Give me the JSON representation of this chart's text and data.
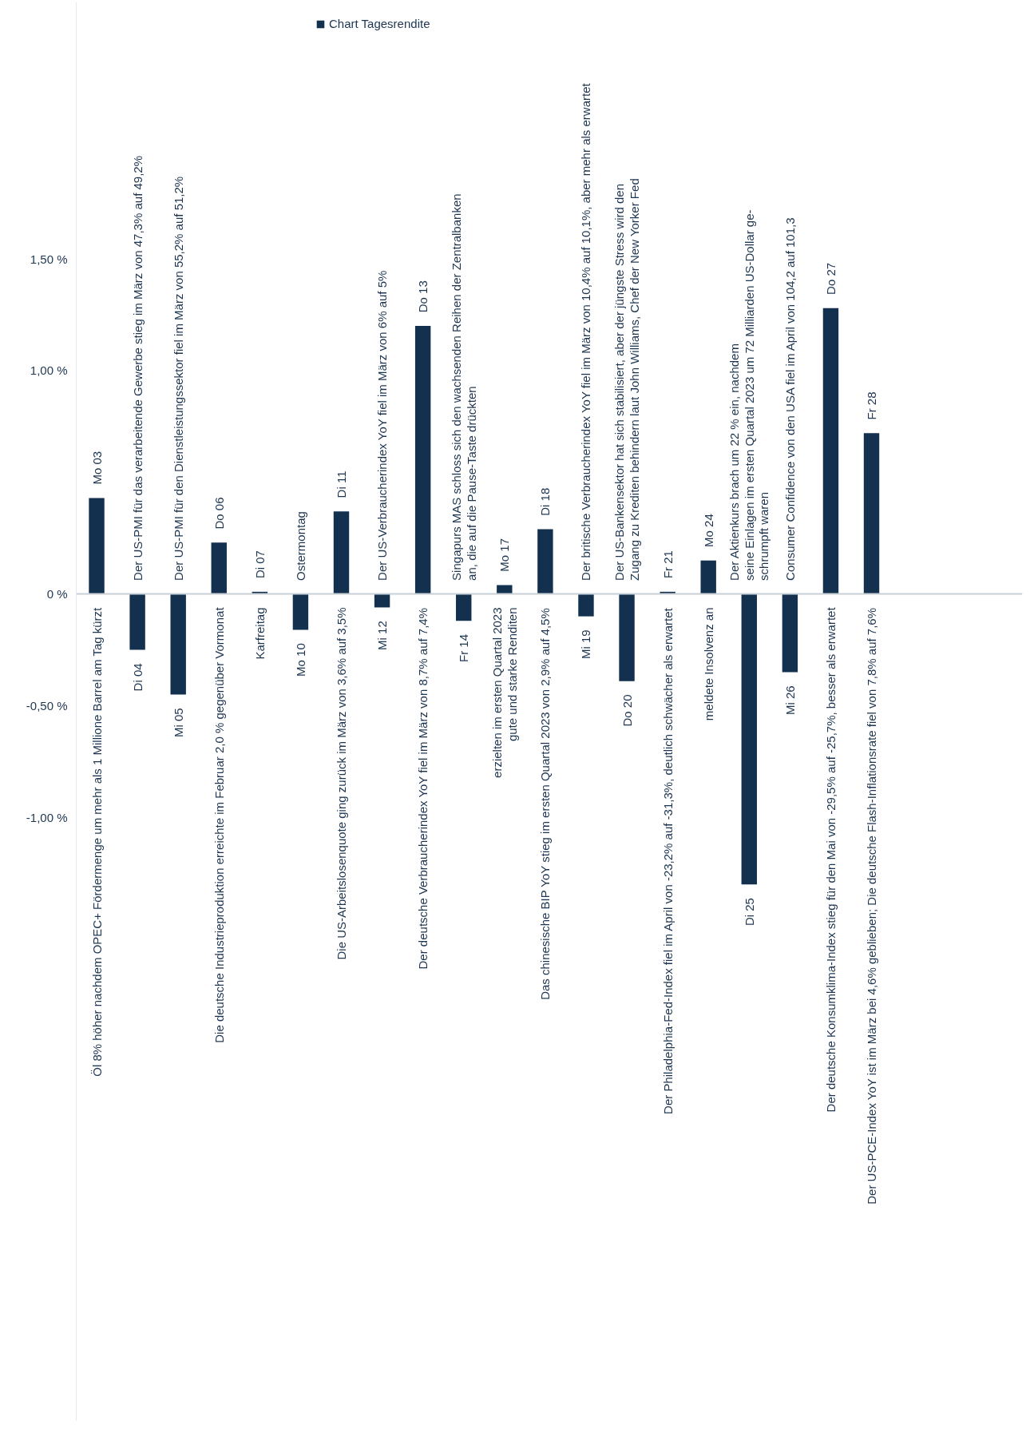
{
  "chart_data": {
    "type": "bar",
    "categories": [
      "Mo 03",
      "Di 04",
      "Mi 05",
      "Do 06",
      "Di 07",
      "Mo 10",
      "Di 11",
      "Mi 12",
      "Do 13",
      "Fr 14",
      "Mo 17",
      "Di 18",
      "Mi 19",
      "Do 20",
      "Fr 21",
      "Mo 24",
      "Di 25",
      "Mi 26",
      "Do 27",
      "Fr 28"
    ],
    "series": [
      {
        "name": "Chart Tagesrendite",
        "color": "#14304f",
        "values": [
          0.43,
          -0.25,
          -0.45,
          0.23,
          0.01,
          -0.16,
          0.37,
          -0.06,
          1.2,
          -0.12,
          0.04,
          0.29,
          -0.1,
          -0.39,
          0.01,
          0.15,
          -1.3,
          -0.35,
          1.28,
          0.72
        ]
      }
    ],
    "ylim": [
      -3.7,
      2.65
    ],
    "yticks": [
      {
        "value": 1.5,
        "label": "1,50 %"
      },
      {
        "value": 1.0,
        "label": "1,00 %"
      },
      {
        "value": 0,
        "label": "0 %"
      },
      {
        "value": -0.5,
        "label": "-0,50 %"
      },
      {
        "value": -1.0,
        "label": "-1,00 %"
      }
    ],
    "tick_labels": "y",
    "legend": "top",
    "annotations": [
      "Öl 8% höher nachdem OPEC+ Fördermenge um mehr als 1 Millione Barrel am Tag kürzt",
      "Der US-PMI für das verarbeitende Gewerbe stieg im März von 47,3% auf 49,2%",
      "Der US-PMI für den Dienstleistungssektor fiel im März von 55,2% auf 51,2%",
      "Die deutsche Industrieproduktion erreichte im Februar 2,0 % gegenüber Vormonat",
      "Karfreitag",
      "Ostermontag",
      "Die US-Arbeitslosenquote ging zurück im März von 3,6% auf 3,5%",
      "Der US-Verbraucherindex YoY fiel im März von 6% auf 5%",
      "Der deutsche Verbraucherindex YoY fiel im März von 8,7% auf 7,4%",
      "Singapurs MAS schloss sich den wachsenden Reihen der Zentralbanken\nan, die auf die Pause-Taste drückten",
      "erzielten im ersten Quartal 2023\ngute und starke Renditen",
      "Das chinesische BIP YoY stieg im ersten Quartal 2023 von 2,9% auf 4,5%",
      "Der britische Verbraucherindex YoY fiel im März von 10,4% auf 10,1%, aber mehr als erwartet",
      "Der US-Bankensektor hat sich stabilisiert, aber der jüngste Stress wird den\nZugang zu Krediten behindern laut John Williams, Chef der New Yorker Fed",
      "Der Philadelphia-Fed-Index fiel im April von -23,2% auf -31,3%, deutlich schwächer als erwartet",
      "meldete Insolvenz an",
      "Der Aktienkurs brach um 22 % ein, nachdem\nseine Einlagen im ersten Quartal 2023 um 72 Milliarden US-Dollar ge-\nschrumpft waren",
      "Consumer Confidence von den USA fiel im April von 104,2 auf 101,3",
      "Der deutsche Konsumklima-Index stieg für den Mai von -29,5% auf -25,7%, besser als erwartet",
      "Der US-PCE-Index YoY ist im März bei 4,6% geblieben; Die deutsche Flash-Inflationsrate fiel von 7,8% auf 7,6%"
    ]
  }
}
